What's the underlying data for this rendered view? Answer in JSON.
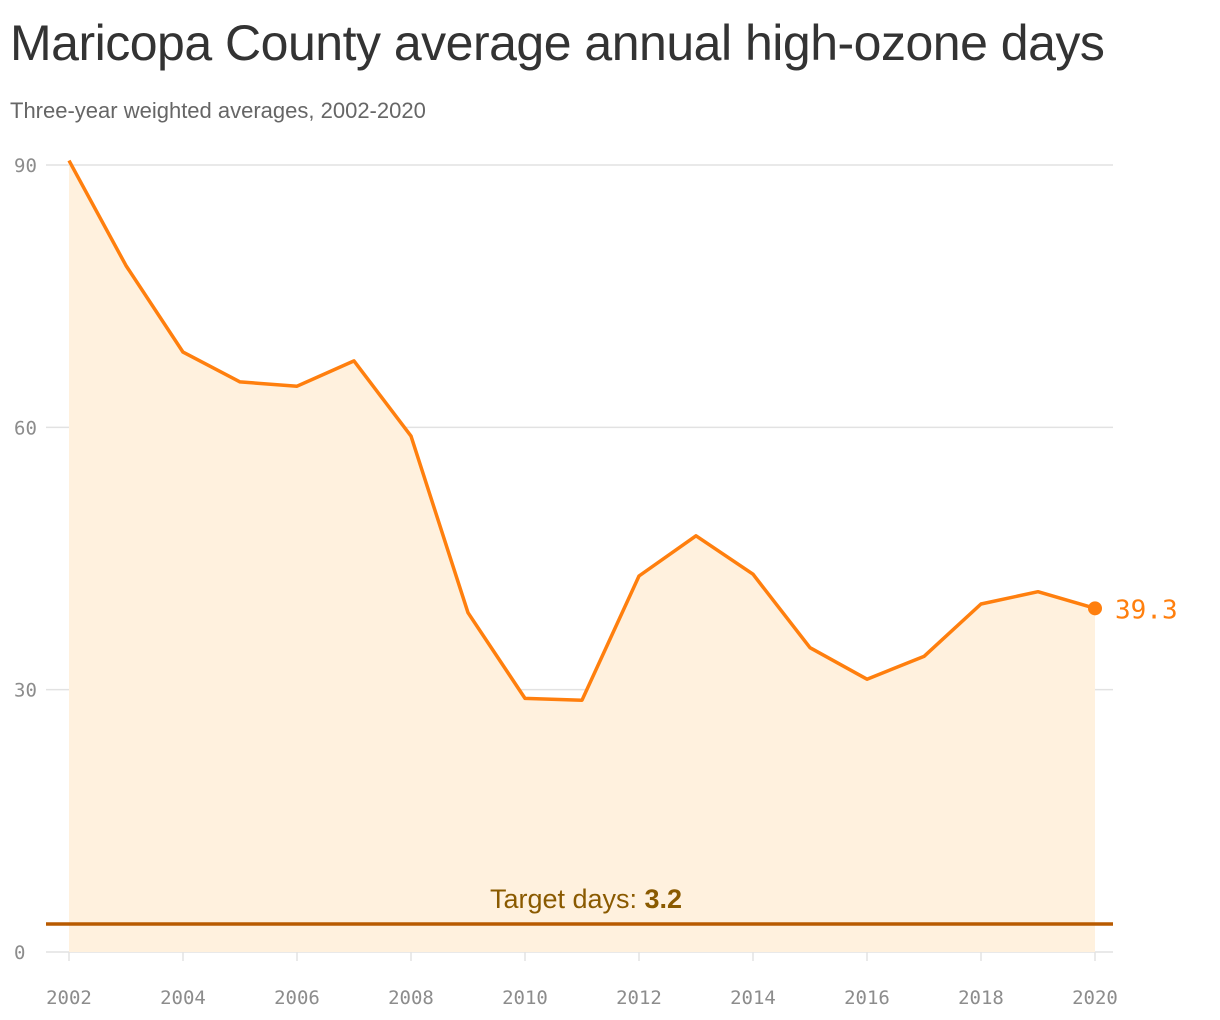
{
  "title": "Maricopa County average annual high-ozone days",
  "subtitle": "Three-year weighted averages, 2002-2020",
  "colors": {
    "line": "#FF7F0E",
    "area": "#FFF1DE",
    "target_line": "#B85A00",
    "target_text": "#8A5A00",
    "grid": "#E2E2E2",
    "tick_text": "#8C8C8C"
  },
  "chart_data": {
    "type": "area",
    "x": [
      2002,
      2003,
      2004,
      2005,
      2006,
      2007,
      2008,
      2009,
      2010,
      2011,
      2012,
      2013,
      2014,
      2015,
      2016,
      2017,
      2018,
      2019,
      2020
    ],
    "series": [
      {
        "values": [
          90.5,
          78.5,
          68.6,
          65.2,
          64.7,
          67.6,
          59.0,
          38.8,
          29.0,
          28.8,
          43.0,
          47.6,
          43.2,
          34.8,
          31.2,
          33.8,
          39.8,
          41.2,
          39.3
        ]
      }
    ],
    "end_label": "39.3",
    "target": {
      "value": 3.2,
      "label_prefix": "Target days: ",
      "label_value": "3.2"
    },
    "y_ticks": [
      0,
      30,
      60,
      90
    ],
    "y_tick_labels": [
      "0",
      "30",
      "60",
      "90"
    ],
    "x_ticks": [
      2002,
      2004,
      2006,
      2008,
      2010,
      2012,
      2014,
      2016,
      2018,
      2020
    ],
    "x_tick_labels": [
      "2002",
      "2004",
      "2006",
      "2008",
      "2010",
      "2012",
      "2014",
      "2016",
      "2018",
      "2020"
    ],
    "xlim": [
      2002,
      2020
    ],
    "ylim": [
      0,
      90
    ],
    "grid": true,
    "xlabel": "",
    "ylabel": ""
  }
}
